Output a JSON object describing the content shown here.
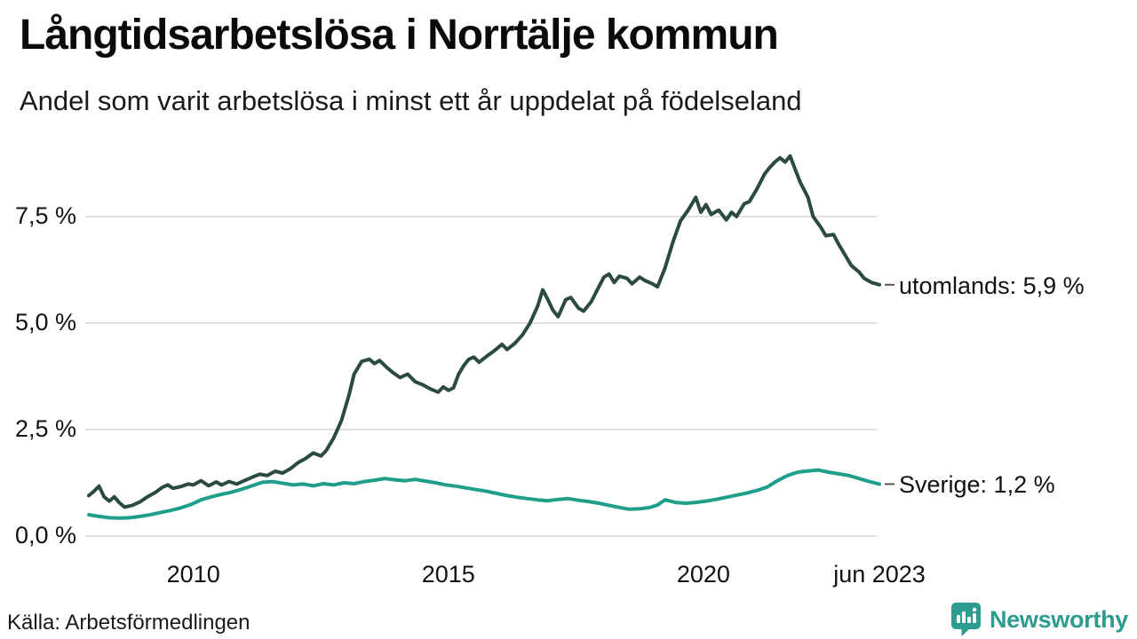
{
  "header": {
    "title": "Långtidsarbetslösa i Norrtälje kommun",
    "subtitle": "Andel som varit arbetslösa i minst ett år uppdelat på födelseland"
  },
  "footer": {
    "source": "Källa: Arbetsförmedlingen",
    "brand_name": "Newsworthy"
  },
  "colors": {
    "utomlands_line": "#2b4a43",
    "sverige_line": "#1f9e8c",
    "gridline": "#e2e2e2",
    "leader_dash": "#555555",
    "brand_teal": "#2d9b8d",
    "text": "#111111"
  },
  "chart_data": {
    "type": "line",
    "title": "Långtidsarbetslösa i Norrtälje kommun",
    "subtitle": "Andel som varit arbetslösa i minst ett år uppdelat på födelseland",
    "xlabel": "",
    "ylabel": "",
    "grid": true,
    "legend_position": "right-end-labels",
    "xlim": [
      2007.95,
      2023.45
    ],
    "ylim": [
      0,
      9.25
    ],
    "x_ticks": [
      {
        "v": 2010,
        "label": "2010"
      },
      {
        "v": 2015,
        "label": "2015"
      },
      {
        "v": 2020,
        "label": "2020"
      },
      {
        "v": 2023.45,
        "label": "jun 2023"
      }
    ],
    "y_ticks": [
      {
        "v": 0,
        "label": "0,0 %"
      },
      {
        "v": 2.5,
        "label": "2,5 %"
      },
      {
        "v": 5,
        "label": "5,0 %"
      },
      {
        "v": 7.5,
        "label": "7,5 %"
      }
    ],
    "series": [
      {
        "name": "utomlands",
        "end_label": "utomlands: 5,9 %",
        "end_value": 5.9,
        "color": "#2b4a43",
        "x": [
          2007.95,
          2008.05,
          2008.15,
          2008.25,
          2008.35,
          2008.45,
          2008.55,
          2008.65,
          2008.8,
          2008.95,
          2009.1,
          2009.25,
          2009.4,
          2009.5,
          2009.6,
          2009.75,
          2009.9,
          2010.0,
          2010.15,
          2010.3,
          2010.45,
          2010.55,
          2010.7,
          2010.85,
          2011.0,
          2011.15,
          2011.3,
          2011.45,
          2011.6,
          2011.75,
          2011.9,
          2012.05,
          2012.2,
          2012.35,
          2012.5,
          2012.6,
          2012.75,
          2012.9,
          2013.05,
          2013.15,
          2013.3,
          2013.45,
          2013.55,
          2013.65,
          2013.8,
          2013.9,
          2014.05,
          2014.2,
          2014.35,
          2014.5,
          2014.65,
          2014.8,
          2014.9,
          2015.0,
          2015.1,
          2015.2,
          2015.3,
          2015.4,
          2015.5,
          2015.6,
          2015.75,
          2015.9,
          2016.05,
          2016.15,
          2016.3,
          2016.45,
          2016.6,
          2016.75,
          2016.85,
          2016.95,
          2017.05,
          2017.15,
          2017.3,
          2017.4,
          2017.55,
          2017.65,
          2017.8,
          2017.95,
          2018.05,
          2018.15,
          2018.25,
          2018.35,
          2018.5,
          2018.6,
          2018.75,
          2018.85,
          2019.0,
          2019.1,
          2019.25,
          2019.4,
          2019.55,
          2019.7,
          2019.85,
          2019.95,
          2020.05,
          2020.15,
          2020.3,
          2020.45,
          2020.55,
          2020.65,
          2020.8,
          2020.9,
          2021.05,
          2021.2,
          2021.3,
          2021.4,
          2021.5,
          2021.6,
          2021.7,
          2021.8,
          2021.9,
          2022.05,
          2022.15,
          2022.3,
          2022.4,
          2022.55,
          2022.65,
          2022.8,
          2022.9,
          2023.05,
          2023.15,
          2023.3,
          2023.45
        ],
        "values": [
          0.95,
          1.05,
          1.17,
          0.92,
          0.82,
          0.92,
          0.78,
          0.68,
          0.72,
          0.8,
          0.92,
          1.02,
          1.15,
          1.2,
          1.12,
          1.16,
          1.22,
          1.2,
          1.3,
          1.18,
          1.27,
          1.2,
          1.28,
          1.22,
          1.3,
          1.38,
          1.45,
          1.42,
          1.52,
          1.48,
          1.58,
          1.72,
          1.82,
          1.95,
          1.88,
          2.0,
          2.3,
          2.7,
          3.3,
          3.8,
          4.1,
          4.15,
          4.05,
          4.12,
          3.95,
          3.85,
          3.72,
          3.8,
          3.62,
          3.55,
          3.45,
          3.38,
          3.5,
          3.42,
          3.48,
          3.8,
          4.0,
          4.15,
          4.2,
          4.08,
          4.22,
          4.35,
          4.5,
          4.38,
          4.52,
          4.72,
          5.0,
          5.4,
          5.78,
          5.55,
          5.3,
          5.15,
          5.55,
          5.6,
          5.35,
          5.28,
          5.5,
          5.85,
          6.08,
          6.15,
          5.95,
          6.1,
          6.05,
          5.92,
          6.08,
          6.0,
          5.92,
          5.85,
          6.3,
          6.9,
          7.4,
          7.65,
          7.95,
          7.6,
          7.78,
          7.55,
          7.65,
          7.42,
          7.6,
          7.5,
          7.8,
          7.85,
          8.15,
          8.5,
          8.65,
          8.78,
          8.88,
          8.78,
          8.92,
          8.6,
          8.3,
          7.95,
          7.5,
          7.25,
          7.05,
          7.08,
          6.85,
          6.55,
          6.35,
          6.2,
          6.05,
          5.95,
          5.9
        ]
      },
      {
        "name": "Sverige",
        "end_label": "Sverige: 1,2 %",
        "end_value": 1.2,
        "color": "#1f9e8c",
        "x": [
          2007.95,
          2008.15,
          2008.35,
          2008.55,
          2008.75,
          2008.95,
          2009.15,
          2009.35,
          2009.55,
          2009.75,
          2009.95,
          2010.15,
          2010.35,
          2010.55,
          2010.75,
          2010.95,
          2011.15,
          2011.35,
          2011.55,
          2011.75,
          2011.95,
          2012.15,
          2012.35,
          2012.55,
          2012.75,
          2012.95,
          2013.15,
          2013.35,
          2013.55,
          2013.75,
          2013.95,
          2014.15,
          2014.35,
          2014.55,
          2014.75,
          2014.95,
          2015.15,
          2015.35,
          2015.55,
          2015.75,
          2015.95,
          2016.15,
          2016.35,
          2016.55,
          2016.75,
          2016.95,
          2017.15,
          2017.35,
          2017.55,
          2017.75,
          2017.95,
          2018.15,
          2018.35,
          2018.55,
          2018.75,
          2018.95,
          2019.1,
          2019.25,
          2019.45,
          2019.65,
          2019.85,
          2020.05,
          2020.25,
          2020.45,
          2020.65,
          2020.85,
          2021.05,
          2021.25,
          2021.45,
          2021.65,
          2021.85,
          2022.05,
          2022.25,
          2022.45,
          2022.65,
          2022.85,
          2023.05,
          2023.25,
          2023.45
        ],
        "values": [
          0.5,
          0.46,
          0.43,
          0.42,
          0.43,
          0.46,
          0.5,
          0.55,
          0.6,
          0.66,
          0.74,
          0.85,
          0.92,
          0.98,
          1.03,
          1.1,
          1.18,
          1.26,
          1.28,
          1.24,
          1.2,
          1.22,
          1.18,
          1.23,
          1.2,
          1.25,
          1.23,
          1.28,
          1.31,
          1.35,
          1.32,
          1.3,
          1.33,
          1.29,
          1.25,
          1.2,
          1.17,
          1.13,
          1.09,
          1.05,
          1.0,
          0.95,
          0.91,
          0.88,
          0.85,
          0.83,
          0.86,
          0.88,
          0.84,
          0.81,
          0.77,
          0.72,
          0.67,
          0.63,
          0.64,
          0.67,
          0.73,
          0.85,
          0.79,
          0.77,
          0.79,
          0.82,
          0.86,
          0.91,
          0.96,
          1.01,
          1.07,
          1.15,
          1.3,
          1.42,
          1.5,
          1.53,
          1.55,
          1.5,
          1.46,
          1.42,
          1.35,
          1.28,
          1.22
        ]
      }
    ]
  }
}
